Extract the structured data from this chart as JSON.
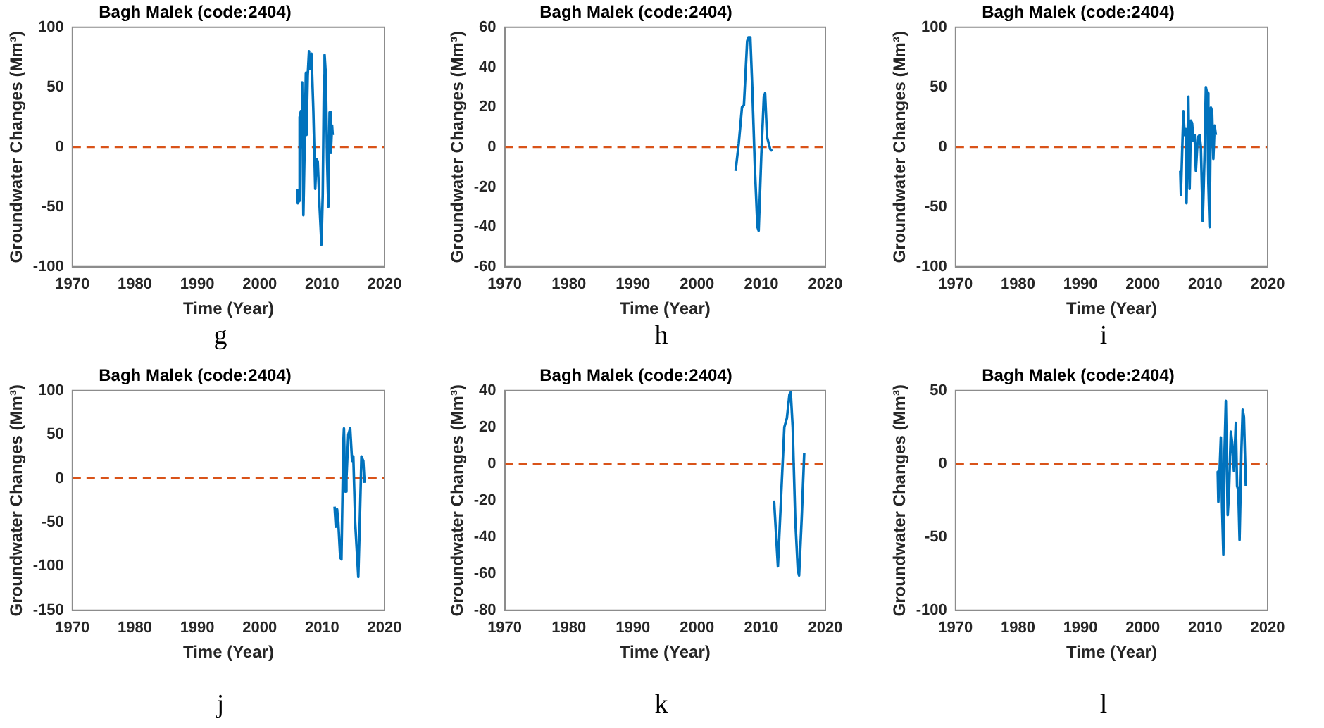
{
  "chart_data": [
    {
      "type": "line",
      "title": "Bagh Malek (code:2404)",
      "xlabel": "Time (Year)",
      "ylabel": "Groundwater Changes (Mm³)",
      "xlim": [
        1970,
        2020
      ],
      "xticks": [
        1970,
        1980,
        1990,
        2000,
        2010,
        2020
      ],
      "ylim": [
        -100,
        100
      ],
      "yticks": [
        -100,
        -50,
        0,
        50,
        100
      ],
      "annotations": [
        "g"
      ],
      "ref_lines": [
        {
          "axis": "y",
          "value": 0,
          "color": "#d95319",
          "line_style": "dashed"
        }
      ],
      "x": [
        2006.0,
        2006.1,
        2006.3,
        2006.4,
        2006.6,
        2006.7,
        2006.8,
        2007.0,
        2007.2,
        2007.4,
        2007.5,
        2007.7,
        2007.9,
        2008.1,
        2008.3,
        2008.6,
        2008.9,
        2009.1,
        2009.3,
        2009.6,
        2009.9,
        2010.1,
        2010.3,
        2010.4,
        2010.6,
        2010.8,
        2011.0,
        2011.2,
        2011.4,
        2011.6,
        2011.7
      ],
      "series": [
        {
          "color": "#0072bd",
          "values": [
            -35,
            -47,
            -45,
            25,
            30,
            0,
            54,
            -57,
            0,
            62,
            10,
            60,
            80,
            65,
            78,
            30,
            -35,
            -10,
            -12,
            -50,
            -82,
            -40,
            60,
            77,
            60,
            -10,
            -50,
            29,
            -5,
            18,
            10
          ]
        }
      ]
    },
    {
      "type": "line",
      "title": "Bagh Malek (code:2404)",
      "xlabel": "Time (Year)",
      "ylabel": "Groundwater Changes (Mm³)",
      "xlim": [
        1970,
        2020
      ],
      "xticks": [
        1970,
        1980,
        1990,
        2000,
        2010,
        2020
      ],
      "ylim": [
        -60,
        60
      ],
      "yticks": [
        -60,
        -40,
        -20,
        0,
        20,
        40,
        60
      ],
      "annotations": [
        "h"
      ],
      "ref_lines": [
        {
          "axis": "y",
          "value": 0,
          "color": "#d95319",
          "line_style": "dashed"
        }
      ],
      "x": [
        2006.0,
        2006.5,
        2007.0,
        2007.3,
        2007.8,
        2008.0,
        2008.3,
        2008.6,
        2009.0,
        2009.4,
        2009.6,
        2010.0,
        2010.4,
        2010.6,
        2010.9,
        2011.4,
        2011.7
      ],
      "series": [
        {
          "color": "#0072bd",
          "values": [
            -12,
            2,
            20,
            21,
            53,
            55,
            55,
            30,
            -10,
            -40,
            -42,
            -5,
            25,
            27,
            5,
            -1,
            -2
          ]
        }
      ]
    },
    {
      "type": "line",
      "title": "Bagh Malek (code:2404)",
      "xlabel": "Time (Year)",
      "ylabel": "Groundwater Changes (Mm³)",
      "xlim": [
        1970,
        2020
      ],
      "xticks": [
        1970,
        1980,
        1990,
        2000,
        2010,
        2020
      ],
      "ylim": [
        -100,
        100
      ],
      "yticks": [
        -100,
        -50,
        0,
        50,
        100
      ],
      "annotations": [
        "i"
      ],
      "ref_lines": [
        {
          "axis": "y",
          "value": 0,
          "color": "#d95319",
          "line_style": "dashed"
        }
      ],
      "x": [
        2006.0,
        2006.1,
        2006.3,
        2006.5,
        2006.7,
        2006.9,
        2007.0,
        2007.3,
        2007.5,
        2007.7,
        2007.9,
        2008.1,
        2008.3,
        2008.5,
        2008.8,
        2009.1,
        2009.3,
        2009.6,
        2009.9,
        2010.1,
        2010.3,
        2010.5,
        2010.7,
        2010.9,
        2011.1,
        2011.3,
        2011.5,
        2011.7
      ],
      "series": [
        {
          "color": "#0072bd",
          "values": [
            -20,
            -40,
            -5,
            30,
            10,
            15,
            -47,
            42,
            -35,
            22,
            20,
            5,
            10,
            -20,
            8,
            10,
            0,
            -62,
            -5,
            50,
            45,
            -30,
            -67,
            33,
            30,
            -10,
            18,
            10
          ]
        }
      ]
    },
    {
      "type": "line",
      "title": "Bagh Malek (code:2404)",
      "xlabel": "Time (Year)",
      "ylabel": "Groundwater Changes (Mm³)",
      "xlim": [
        1970,
        2020
      ],
      "xticks": [
        1970,
        1980,
        1990,
        2000,
        2010,
        2020
      ],
      "ylim": [
        -150,
        100
      ],
      "yticks": [
        -150,
        -100,
        -50,
        0,
        50,
        100
      ],
      "annotations": [
        "j"
      ],
      "ref_lines": [
        {
          "axis": "y",
          "value": 0,
          "color": "#d95319",
          "line_style": "dashed"
        }
      ],
      "x": [
        2012.0,
        2012.2,
        2012.4,
        2012.6,
        2012.9,
        2013.1,
        2013.4,
        2013.5,
        2013.7,
        2013.9,
        2014.2,
        2014.5,
        2014.8,
        2015.0,
        2015.3,
        2015.5,
        2015.8,
        2016.0,
        2016.3,
        2016.6,
        2016.8
      ],
      "series": [
        {
          "color": "#0072bd",
          "values": [
            -32,
            -55,
            -35,
            -50,
            -90,
            -92,
            40,
            57,
            -15,
            0,
            50,
            57,
            20,
            25,
            -50,
            -75,
            -112,
            -60,
            25,
            20,
            -5
          ]
        }
      ]
    },
    {
      "type": "line",
      "title": "Bagh Malek (code:2404)",
      "xlabel": "Time (Year)",
      "ylabel": "Groundwater Changes (Mm³)",
      "xlim": [
        1970,
        2020
      ],
      "xticks": [
        1970,
        1980,
        1990,
        2000,
        2010,
        2020
      ],
      "ylim": [
        -80,
        40
      ],
      "yticks": [
        -80,
        -60,
        -40,
        -20,
        0,
        20,
        40
      ],
      "annotations": [
        "k"
      ],
      "ref_lines": [
        {
          "axis": "y",
          "value": 0,
          "color": "#d95319",
          "line_style": "dashed"
        }
      ],
      "x": [
        2012.0,
        2012.6,
        2013.2,
        2013.6,
        2014.0,
        2014.4,
        2014.6,
        2014.9,
        2015.3,
        2015.7,
        2015.9,
        2016.3,
        2016.7
      ],
      "series": [
        {
          "color": "#0072bd",
          "values": [
            -20,
            -56,
            -10,
            20,
            25,
            38,
            39,
            20,
            -30,
            -58,
            -61,
            -30,
            6
          ]
        }
      ]
    },
    {
      "type": "line",
      "title": "Bagh Malek (code:2404)",
      "xlabel": "Time (Year)",
      "ylabel": "Groundwater Changes (Mm³)",
      "xlim": [
        1970,
        2020
      ],
      "xticks": [
        1970,
        1980,
        1990,
        2000,
        2010,
        2020
      ],
      "ylim": [
        -100,
        50
      ],
      "yticks": [
        -100,
        -50,
        0,
        50
      ],
      "annotations": [
        "l"
      ],
      "ref_lines": [
        {
          "axis": "y",
          "value": 0,
          "color": "#d95319",
          "line_style": "dashed"
        }
      ],
      "x": [
        2012.0,
        2012.1,
        2012.3,
        2012.5,
        2012.7,
        2012.9,
        2013.1,
        2013.3,
        2013.6,
        2013.8,
        2014.1,
        2014.3,
        2014.6,
        2014.9,
        2015.1,
        2015.3,
        2015.5,
        2015.8,
        2016.0,
        2016.2,
        2016.5
      ],
      "series": [
        {
          "color": "#0072bd",
          "values": [
            -5,
            -26,
            -5,
            18,
            -30,
            -62,
            10,
            43,
            -35,
            -20,
            22,
            15,
            -5,
            28,
            -15,
            -18,
            -52,
            10,
            37,
            32,
            -15
          ]
        }
      ]
    }
  ]
}
